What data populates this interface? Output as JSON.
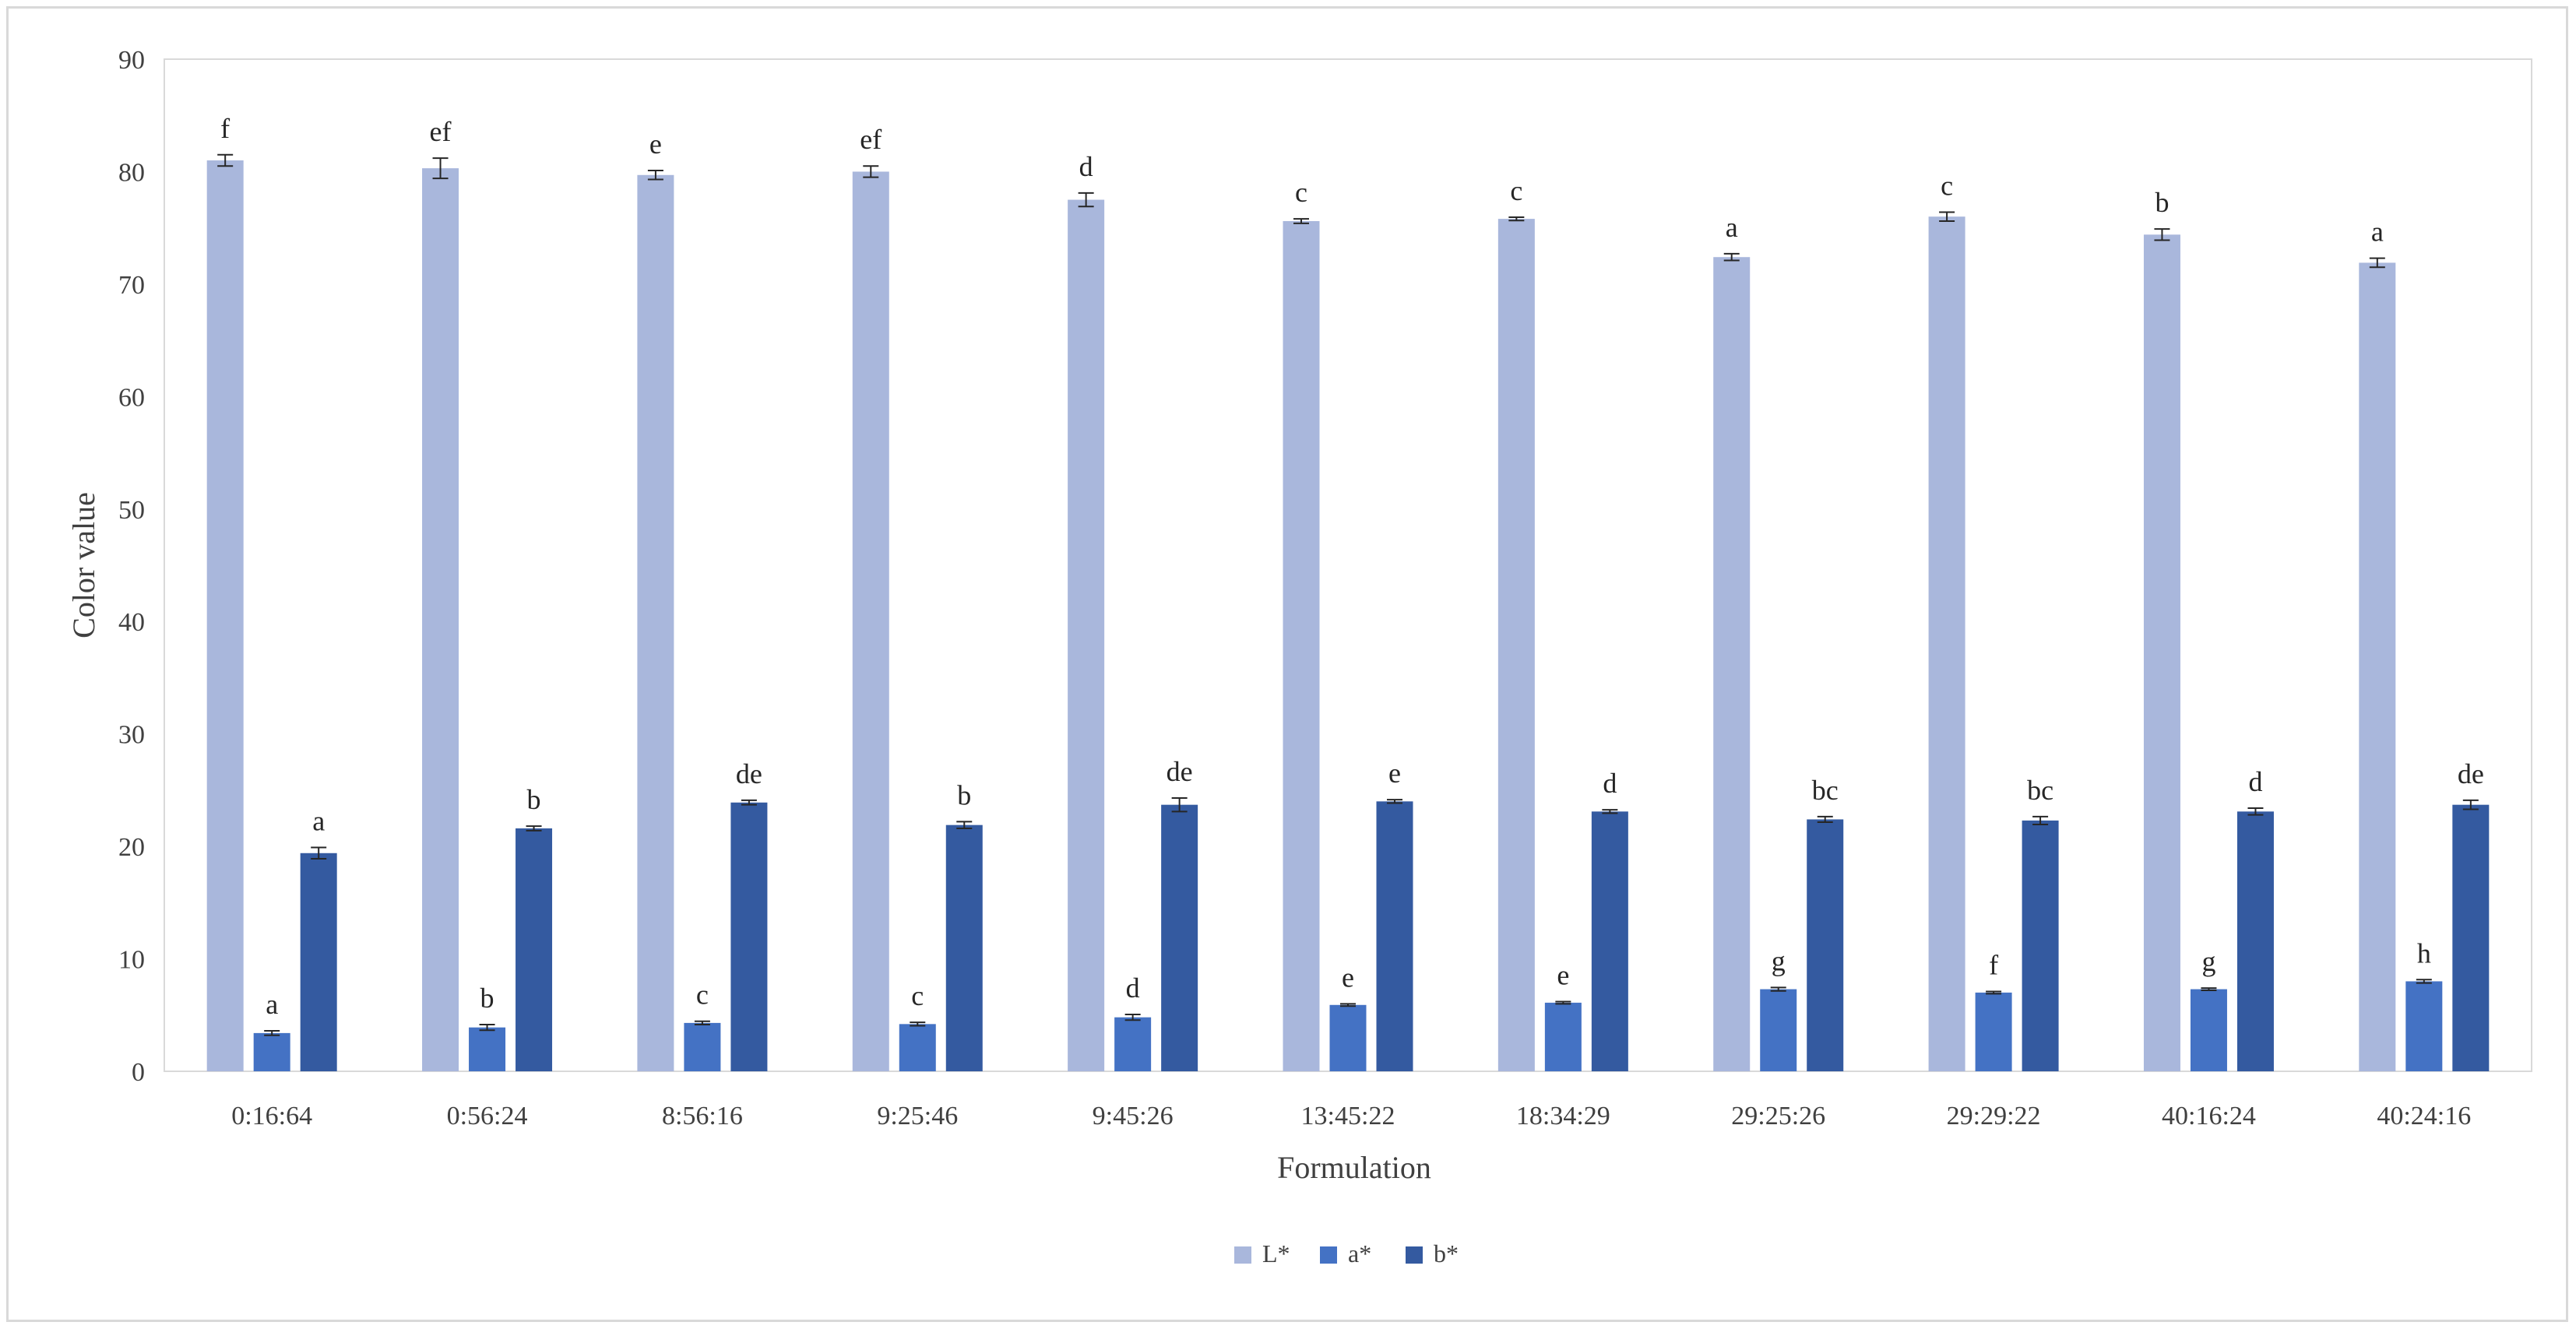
{
  "chart_data": {
    "type": "bar",
    "title": "",
    "xlabel": "Formulation",
    "ylabel": "Color value",
    "ylim": [
      0,
      90
    ],
    "yticks": [
      0,
      10,
      20,
      30,
      40,
      50,
      60,
      70,
      80,
      90
    ],
    "grid": false,
    "legend_position": "bottom",
    "categories": [
      "0:16:64",
      "0:56:24",
      "8:56:16",
      "9:25:46",
      "9:45:26",
      "13:45:22",
      "18:34:29",
      "29:25:26",
      "29:29:22",
      "40:16:24",
      "40:24:16"
    ],
    "series": [
      {
        "name": "L*",
        "color": "#a9b7dc",
        "values": [
          81.0,
          80.3,
          79.7,
          80.0,
          77.5,
          75.6,
          75.8,
          72.4,
          76.0,
          74.4,
          71.9
        ],
        "errors": [
          0.5,
          0.9,
          0.4,
          0.5,
          0.6,
          0.2,
          0.15,
          0.3,
          0.4,
          0.5,
          0.4
        ],
        "labels": [
          "f",
          "ef",
          "e",
          "ef",
          "d",
          "c",
          "c",
          "a",
          "c",
          "b",
          "a"
        ]
      },
      {
        "name": "a*",
        "color": "#4472c4",
        "values": [
          3.4,
          3.9,
          4.3,
          4.2,
          4.8,
          5.9,
          6.1,
          7.3,
          7.0,
          7.3,
          8.0
        ],
        "errors": [
          0.2,
          0.25,
          0.15,
          0.15,
          0.25,
          0.1,
          0.1,
          0.15,
          0.1,
          0.1,
          0.15
        ],
        "labels": [
          "a",
          "b",
          "c",
          "c",
          "d",
          "e",
          "e",
          "g",
          "f",
          "g",
          "h"
        ]
      },
      {
        "name": "b*",
        "color": "#345aa0",
        "values": [
          19.4,
          21.6,
          23.9,
          21.9,
          23.7,
          24.0,
          23.1,
          22.4,
          22.3,
          23.1,
          23.7
        ],
        "errors": [
          0.5,
          0.2,
          0.2,
          0.3,
          0.6,
          0.15,
          0.15,
          0.25,
          0.35,
          0.3,
          0.4
        ],
        "labels": [
          "a",
          "b",
          "de",
          "b",
          "de",
          "e",
          "d",
          "bc",
          "bc",
          "d",
          "de"
        ]
      }
    ]
  }
}
